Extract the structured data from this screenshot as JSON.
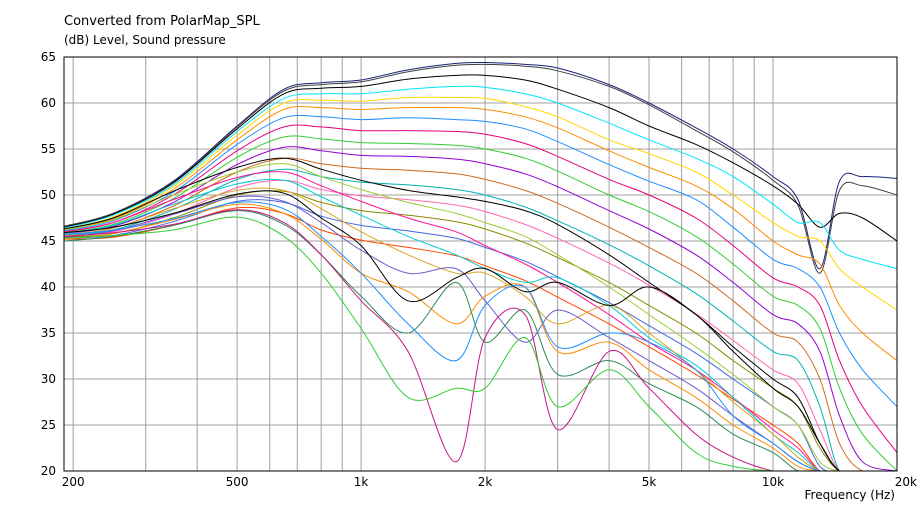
{
  "chart_data": {
    "type": "line",
    "title": "Converted from PolarMap_SPL",
    "ylabel": "(dB)  Level, Sound pressure",
    "xlabel": "Frequency  (Hz)",
    "x_scale": "log",
    "xlim": [
      190,
      20000
    ],
    "ylim": [
      20,
      65
    ],
    "grid": true,
    "x_tick_labels": [
      {
        "value": 200,
        "label": "200"
      },
      {
        "value": 500,
        "label": "500"
      },
      {
        "value": 1000,
        "label": "1k"
      },
      {
        "value": 2000,
        "label": "2k"
      },
      {
        "value": 5000,
        "label": "5k"
      },
      {
        "value": 10000,
        "label": "10k"
      },
      {
        "value": 20000,
        "label": "20k"
      }
    ],
    "y_ticks": [
      20,
      25,
      30,
      35,
      40,
      45,
      50,
      55,
      60,
      65
    ],
    "x": [
      190,
      250,
      350,
      500,
      650,
      800,
      1000,
      1300,
      1700,
      2000,
      2500,
      3000,
      4000,
      5000,
      6500,
      8000,
      10000,
      11500,
      13000,
      14500,
      16500,
      20000
    ],
    "series": [
      {
        "values": [
          46.6,
          48.0,
          51.5,
          57.5,
          61.5,
          62.2,
          62.5,
          63.6,
          64.3,
          64.4,
          64.2,
          63.8,
          62.0,
          60.0,
          57.3,
          55.0,
          52.0,
          49.5,
          42.0,
          51.5,
          52.0,
          51.8
        ]
      },
      {
        "values": [
          46.6,
          48.0,
          51.4,
          57.4,
          61.3,
          62.0,
          62.3,
          63.4,
          64.1,
          64.2,
          64.0,
          63.5,
          61.8,
          59.8,
          57.0,
          54.7,
          51.6,
          48.9,
          41.5,
          50.5,
          51.0,
          50.0
        ]
      },
      {
        "values": [
          46.5,
          47.9,
          51.3,
          57.2,
          61.0,
          61.6,
          61.8,
          62.6,
          63.0,
          63.0,
          62.5,
          61.5,
          59.5,
          57.5,
          55.5,
          53.5,
          51.0,
          49.0,
          46.5,
          48.0,
          47.5,
          45.0
        ]
      },
      {
        "values": [
          46.4,
          47.8,
          51.1,
          56.9,
          60.5,
          61.0,
          61.0,
          61.5,
          61.8,
          61.7,
          61.0,
          60.0,
          57.8,
          56.0,
          54.0,
          52.0,
          49.0,
          47.0,
          47.0,
          44.0,
          43.0,
          42.0
        ]
      },
      {
        "values": [
          46.3,
          47.6,
          50.9,
          56.5,
          60.0,
          60.3,
          60.2,
          60.6,
          60.6,
          60.5,
          59.6,
          58.5,
          56.0,
          54.5,
          52.5,
          50.0,
          47.0,
          45.5,
          45.0,
          42.0,
          40.0,
          37.5
        ]
      },
      {
        "values": [
          46.2,
          47.4,
          50.6,
          56.0,
          59.3,
          59.5,
          59.3,
          59.5,
          59.5,
          59.3,
          58.5,
          57.3,
          54.8,
          53.0,
          51.0,
          48.5,
          45.0,
          43.5,
          42.5,
          38.0,
          35.0,
          32.0
        ]
      },
      {
        "values": [
          46.1,
          47.2,
          50.3,
          55.5,
          58.4,
          58.5,
          58.2,
          58.4,
          58.2,
          58.0,
          57.2,
          55.8,
          53.3,
          51.5,
          49.5,
          46.5,
          43.0,
          42.0,
          40.0,
          35.0,
          31.0,
          27.0
        ]
      },
      {
        "values": [
          46.0,
          47.0,
          50.0,
          54.8,
          57.4,
          57.4,
          57.0,
          57.0,
          56.9,
          56.6,
          55.6,
          54.2,
          51.7,
          50.0,
          47.5,
          44.5,
          41.0,
          40.0,
          38.0,
          32.0,
          27.0,
          22.0
        ]
      },
      {
        "values": [
          45.9,
          46.8,
          49.6,
          54.1,
          56.3,
          56.1,
          55.7,
          55.6,
          55.4,
          55.0,
          54.0,
          52.6,
          50.0,
          48.2,
          45.5,
          42.5,
          39.0,
          38.0,
          35.5,
          29.0,
          24.0,
          20.0
        ]
      },
      {
        "values": [
          45.8,
          46.6,
          49.2,
          53.3,
          55.2,
          54.8,
          54.3,
          54.2,
          53.9,
          53.4,
          52.3,
          50.9,
          48.3,
          46.3,
          43.5,
          40.5,
          37.0,
          36.0,
          33.0,
          26.0,
          21.0,
          20.0
        ]
      },
      {
        "values": [
          45.7,
          46.4,
          48.8,
          52.5,
          54.0,
          53.4,
          52.9,
          52.7,
          52.3,
          51.7,
          50.5,
          49.1,
          46.5,
          44.3,
          41.5,
          38.5,
          35.0,
          34.0,
          30.0,
          23.0,
          20.0,
          20.0
        ]
      },
      {
        "values": [
          45.6,
          46.2,
          48.4,
          51.7,
          52.8,
          52.0,
          51.4,
          51.1,
          50.6,
          50.0,
          48.7,
          47.2,
          44.6,
          42.3,
          39.3,
          36.3,
          33.0,
          32.0,
          27.0,
          20.0,
          20.0,
          20.0
        ]
      },
      {
        "values": [
          45.5,
          46.0,
          47.9,
          50.8,
          51.6,
          50.6,
          49.9,
          49.5,
          48.9,
          48.2,
          46.8,
          45.3,
          42.6,
          40.2,
          37.1,
          34.2,
          31.0,
          29.5,
          24.5,
          20.0,
          20.0,
          20.0
        ]
      },
      {
        "values": [
          45.4,
          45.8,
          47.5,
          50.0,
          50.4,
          49.2,
          48.3,
          47.8,
          47.1,
          46.3,
          44.8,
          43.2,
          40.5,
          38.0,
          35.0,
          32.0,
          29.0,
          27.0,
          22.5,
          20.0,
          20.0,
          20.0
        ]
      },
      {
        "values": [
          45.3,
          45.6,
          47.1,
          49.3,
          49.2,
          47.7,
          46.7,
          46.1,
          45.3,
          44.3,
          42.8,
          41.1,
          38.3,
          35.8,
          32.8,
          30.0,
          27.0,
          25.0,
          20.5,
          20.0,
          20.0,
          20.0
        ]
      },
      {
        "values": [
          45.2,
          45.4,
          46.7,
          48.6,
          48.0,
          46.2,
          45.1,
          44.3,
          43.4,
          42.3,
          40.7,
          38.9,
          36.0,
          33.5,
          30.5,
          27.8,
          25.0,
          23.0,
          20.0,
          20.0,
          20.0,
          20.0
        ]
      },
      {
        "values": [
          46.3,
          47.5,
          50.4,
          53.0,
          54.0,
          52.8,
          51.6,
          50.5,
          49.8,
          49.3,
          48.3,
          46.8,
          43.5,
          40.5,
          37.0,
          33.5,
          30.0,
          28.0,
          23.0,
          20.0,
          20.0,
          20.0
        ]
      },
      {
        "values": [
          46.2,
          47.3,
          50.0,
          52.5,
          53.4,
          52.0,
          50.6,
          49.2,
          48.0,
          47.0,
          45.5,
          43.5,
          40.0,
          37.0,
          33.5,
          30.5,
          27.0,
          25.0,
          21.0,
          20.0,
          20.0,
          20.0
        ]
      },
      {
        "values": [
          46.0,
          47.0,
          49.5,
          51.9,
          52.5,
          51.0,
          49.3,
          47.5,
          46.0,
          44.5,
          42.5,
          40.5,
          37.0,
          34.0,
          31.0,
          28.0,
          24.5,
          22.5,
          20.0,
          20.0,
          20.0,
          20.0
        ]
      },
      {
        "values": [
          45.8,
          46.7,
          49.0,
          51.2,
          51.6,
          49.8,
          47.8,
          45.5,
          43.5,
          42.0,
          40.5,
          41.0,
          38.0,
          34.5,
          31.5,
          28.0,
          24.0,
          22.0,
          20.0,
          20.0,
          20.0,
          20.0
        ]
      },
      {
        "values": [
          45.6,
          46.4,
          48.5,
          50.5,
          50.5,
          48.5,
          46.0,
          43.5,
          41.5,
          41.5,
          39.0,
          36.0,
          38.0,
          35.0,
          31.0,
          27.5,
          24.0,
          21.5,
          20.0,
          20.0,
          20.0,
          20.0
        ]
      },
      {
        "values": [
          45.4,
          46.1,
          47.9,
          49.8,
          49.3,
          47.0,
          44.0,
          41.5,
          42.0,
          38.5,
          34.0,
          37.5,
          34.5,
          32.0,
          29.0,
          26.0,
          23.0,
          21.0,
          20.0,
          20.0,
          20.0,
          20.0
        ]
      },
      {
        "values": [
          45.2,
          45.8,
          47.3,
          49.0,
          48.0,
          45.2,
          41.5,
          39.5,
          36.0,
          39.0,
          40.0,
          33.0,
          34.0,
          31.0,
          28.0,
          25.0,
          22.5,
          20.5,
          20.0,
          20.0,
          20.0,
          20.0
        ]
      },
      {
        "values": [
          45.0,
          45.5,
          46.7,
          48.3,
          46.8,
          43.5,
          39.0,
          35.0,
          40.5,
          34.0,
          37.5,
          30.5,
          32.0,
          29.5,
          27.0,
          24.0,
          22.0,
          20.0,
          20.0,
          20.0,
          20.0,
          20.0
        ]
      },
      {
        "values": [
          45.9,
          46.5,
          48.0,
          50.1,
          50.2,
          47.5,
          44.5,
          38.5,
          41.0,
          42.0,
          39.5,
          40.5,
          38.0,
          40.0,
          37.0,
          33.0,
          29.0,
          27.0,
          23.0,
          20.0,
          20.0,
          20.0
        ]
      },
      {
        "values": [
          45.7,
          46.2,
          47.4,
          49.2,
          48.5,
          45.5,
          41.5,
          36.0,
          32.0,
          38.0,
          40.0,
          33.5,
          35.0,
          34.0,
          31.0,
          26.0,
          23.0,
          21.0,
          20.0,
          20.0,
          20.0,
          20.0
        ]
      },
      {
        "values": [
          45.5,
          45.9,
          46.8,
          48.4,
          47.0,
          43.5,
          38.5,
          33.0,
          21.0,
          34.5,
          37.0,
          24.5,
          33.0,
          29.0,
          24.0,
          21.5,
          20.0,
          20.0,
          20.0,
          20.0,
          20.0,
          20.0
        ]
      },
      {
        "values": [
          45.3,
          45.6,
          46.2,
          47.6,
          45.5,
          41.5,
          35.5,
          28.0,
          29.0,
          29.0,
          34.5,
          27.0,
          31.0,
          27.0,
          22.0,
          20.5,
          20.0,
          20.0,
          20.0,
          20.0,
          20.0,
          20.0
        ]
      }
    ]
  }
}
